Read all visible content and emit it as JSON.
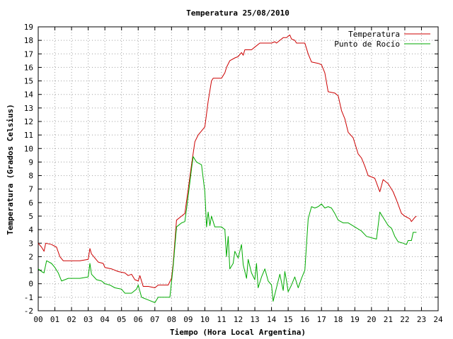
{
  "chart_data": {
    "type": "line",
    "title": "Temperatura 25/08/2010",
    "xlabel": "Tiempo (Hora Local Argentina)",
    "ylabel": "Temperatura (Grados Celsius)",
    "xlim": [
      0,
      24
    ],
    "ylim": [
      -2,
      19
    ],
    "x_ticks": [
      "00",
      "01",
      "02",
      "03",
      "04",
      "05",
      "06",
      "07",
      "08",
      "09",
      "10",
      "11",
      "12",
      "13",
      "14",
      "15",
      "16",
      "17",
      "18",
      "19",
      "20",
      "21",
      "22",
      "23",
      "24"
    ],
    "y_ticks": [
      "-2",
      "-1",
      "0",
      "1",
      "2",
      "3",
      "4",
      "5",
      "6",
      "7",
      "8",
      "9",
      "10",
      "11",
      "12",
      "13",
      "14",
      "15",
      "16",
      "17",
      "18",
      "19"
    ],
    "grid": true,
    "legend_position": "top-right",
    "series": [
      {
        "name": "Temperatura",
        "color": "#cc0000",
        "points": [
          [
            0.0,
            3.0
          ],
          [
            0.2,
            2.7
          ],
          [
            0.35,
            2.4
          ],
          [
            0.45,
            3.0
          ],
          [
            0.8,
            2.9
          ],
          [
            1.1,
            2.7
          ],
          [
            1.3,
            2.0
          ],
          [
            1.5,
            1.7
          ],
          [
            2.0,
            1.7
          ],
          [
            2.5,
            1.7
          ],
          [
            3.0,
            1.8
          ],
          [
            3.1,
            2.6
          ],
          [
            3.2,
            2.2
          ],
          [
            3.4,
            1.9
          ],
          [
            3.6,
            1.6
          ],
          [
            3.9,
            1.5
          ],
          [
            4.0,
            1.2
          ],
          [
            4.4,
            1.1
          ],
          [
            4.8,
            0.9
          ],
          [
            5.2,
            0.8
          ],
          [
            5.4,
            0.6
          ],
          [
            5.6,
            0.7
          ],
          [
            5.8,
            0.3
          ],
          [
            6.0,
            0.2
          ],
          [
            6.1,
            0.6
          ],
          [
            6.3,
            -0.2
          ],
          [
            6.6,
            -0.2
          ],
          [
            7.0,
            -0.3
          ],
          [
            7.2,
            -0.1
          ],
          [
            7.5,
            -0.1
          ],
          [
            7.8,
            -0.1
          ],
          [
            8.0,
            0.4
          ],
          [
            8.1,
            1.5
          ],
          [
            8.3,
            4.7
          ],
          [
            8.6,
            5.0
          ],
          [
            8.8,
            5.2
          ],
          [
            9.0,
            7.0
          ],
          [
            9.2,
            8.8
          ],
          [
            9.4,
            10.5
          ],
          [
            9.6,
            11.0
          ],
          [
            9.8,
            11.3
          ],
          [
            10.0,
            11.6
          ],
          [
            10.2,
            13.5
          ],
          [
            10.4,
            15.0
          ],
          [
            10.5,
            15.2
          ],
          [
            11.0,
            15.2
          ],
          [
            11.2,
            15.6
          ],
          [
            11.3,
            16.0
          ],
          [
            11.5,
            16.5
          ],
          [
            11.8,
            16.7
          ],
          [
            12.0,
            16.8
          ],
          [
            12.2,
            17.1
          ],
          [
            12.3,
            16.9
          ],
          [
            12.4,
            17.3
          ],
          [
            12.8,
            17.3
          ],
          [
            13.0,
            17.5
          ],
          [
            13.3,
            17.8
          ],
          [
            13.7,
            17.8
          ],
          [
            14.0,
            17.8
          ],
          [
            14.2,
            17.9
          ],
          [
            14.3,
            17.8
          ],
          [
            14.5,
            18.0
          ],
          [
            14.7,
            18.2
          ],
          [
            14.9,
            18.2
          ],
          [
            15.0,
            18.3
          ],
          [
            15.1,
            18.4
          ],
          [
            15.2,
            18.1
          ],
          [
            15.4,
            18.0
          ],
          [
            15.5,
            17.8
          ],
          [
            15.8,
            17.8
          ],
          [
            16.0,
            17.8
          ],
          [
            16.2,
            17.0
          ],
          [
            16.4,
            16.4
          ],
          [
            16.8,
            16.3
          ],
          [
            17.0,
            16.2
          ],
          [
            17.2,
            15.6
          ],
          [
            17.4,
            14.2
          ],
          [
            17.8,
            14.1
          ],
          [
            18.0,
            13.9
          ],
          [
            18.2,
            12.8
          ],
          [
            18.4,
            12.2
          ],
          [
            18.6,
            11.2
          ],
          [
            18.9,
            10.8
          ],
          [
            19.0,
            10.4
          ],
          [
            19.2,
            9.6
          ],
          [
            19.4,
            9.3
          ],
          [
            19.6,
            8.7
          ],
          [
            19.8,
            8.0
          ],
          [
            20.2,
            7.8
          ],
          [
            20.5,
            6.8
          ],
          [
            20.7,
            7.7
          ],
          [
            21.0,
            7.4
          ],
          [
            21.3,
            6.8
          ],
          [
            21.5,
            6.2
          ],
          [
            21.8,
            5.2
          ],
          [
            22.0,
            5.0
          ],
          [
            22.3,
            4.8
          ],
          [
            22.4,
            4.6
          ],
          [
            22.6,
            4.9
          ],
          [
            22.7,
            5.0
          ]
        ]
      },
      {
        "name": "Punto de Rocío",
        "color": "#00aa00",
        "points": [
          [
            0.0,
            1.1
          ],
          [
            0.2,
            0.9
          ],
          [
            0.35,
            0.8
          ],
          [
            0.5,
            1.7
          ],
          [
            0.8,
            1.5
          ],
          [
            1.0,
            1.2
          ],
          [
            1.2,
            0.8
          ],
          [
            1.4,
            0.2
          ],
          [
            1.8,
            0.4
          ],
          [
            2.0,
            0.4
          ],
          [
            2.5,
            0.4
          ],
          [
            3.0,
            0.5
          ],
          [
            3.1,
            1.5
          ],
          [
            3.2,
            0.7
          ],
          [
            3.5,
            0.3
          ],
          [
            3.8,
            0.2
          ],
          [
            4.0,
            0.0
          ],
          [
            4.3,
            -0.1
          ],
          [
            4.6,
            -0.3
          ],
          [
            5.0,
            -0.4
          ],
          [
            5.2,
            -0.7
          ],
          [
            5.6,
            -0.7
          ],
          [
            5.9,
            -0.4
          ],
          [
            6.0,
            -0.1
          ],
          [
            6.2,
            -1.0
          ],
          [
            6.6,
            -1.2
          ],
          [
            7.0,
            -1.4
          ],
          [
            7.2,
            -1.0
          ],
          [
            7.6,
            -1.0
          ],
          [
            7.9,
            -1.0
          ],
          [
            8.1,
            1.3
          ],
          [
            8.3,
            4.2
          ],
          [
            8.6,
            4.5
          ],
          [
            8.8,
            4.6
          ],
          [
            9.0,
            6.5
          ],
          [
            9.2,
            8.5
          ],
          [
            9.3,
            9.4
          ],
          [
            9.5,
            9.0
          ],
          [
            9.8,
            8.8
          ],
          [
            10.0,
            6.8
          ],
          [
            10.1,
            4.2
          ],
          [
            10.2,
            5.3
          ],
          [
            10.3,
            4.3
          ],
          [
            10.4,
            5.0
          ],
          [
            10.6,
            4.2
          ],
          [
            11.0,
            4.2
          ],
          [
            11.2,
            4.0
          ],
          [
            11.3,
            2.0
          ],
          [
            11.4,
            3.5
          ],
          [
            11.5,
            1.1
          ],
          [
            11.7,
            1.5
          ],
          [
            11.8,
            2.4
          ],
          [
            12.0,
            1.9
          ],
          [
            12.2,
            2.9
          ],
          [
            12.3,
            1.4
          ],
          [
            12.5,
            0.4
          ],
          [
            12.6,
            1.8
          ],
          [
            12.8,
            0.8
          ],
          [
            13.0,
            0.3
          ],
          [
            13.1,
            1.5
          ],
          [
            13.2,
            -0.3
          ],
          [
            13.4,
            0.5
          ],
          [
            13.6,
            1.1
          ],
          [
            13.8,
            0.2
          ],
          [
            14.0,
            -0.1
          ],
          [
            14.1,
            -1.3
          ],
          [
            14.3,
            -0.3
          ],
          [
            14.5,
            0.7
          ],
          [
            14.7,
            -0.5
          ],
          [
            14.8,
            0.9
          ],
          [
            14.9,
            0.2
          ],
          [
            15.0,
            -0.6
          ],
          [
            15.2,
            -0.1
          ],
          [
            15.4,
            0.5
          ],
          [
            15.6,
            -0.3
          ],
          [
            15.8,
            0.4
          ],
          [
            16.0,
            1.0
          ],
          [
            16.2,
            4.8
          ],
          [
            16.4,
            5.7
          ],
          [
            16.6,
            5.6
          ],
          [
            16.8,
            5.7
          ],
          [
            17.0,
            5.9
          ],
          [
            17.2,
            5.6
          ],
          [
            17.4,
            5.7
          ],
          [
            17.6,
            5.6
          ],
          [
            17.8,
            5.2
          ],
          [
            18.0,
            4.7
          ],
          [
            18.3,
            4.5
          ],
          [
            18.6,
            4.5
          ],
          [
            19.0,
            4.2
          ],
          [
            19.4,
            3.9
          ],
          [
            19.7,
            3.5
          ],
          [
            20.0,
            3.4
          ],
          [
            20.3,
            3.3
          ],
          [
            20.5,
            5.3
          ],
          [
            20.7,
            4.9
          ],
          [
            21.0,
            4.3
          ],
          [
            21.2,
            4.1
          ],
          [
            21.4,
            3.5
          ],
          [
            21.6,
            3.1
          ],
          [
            21.9,
            3.0
          ],
          [
            22.1,
            2.9
          ],
          [
            22.2,
            3.2
          ],
          [
            22.4,
            3.2
          ],
          [
            22.5,
            3.8
          ],
          [
            22.7,
            3.8
          ]
        ]
      }
    ]
  }
}
